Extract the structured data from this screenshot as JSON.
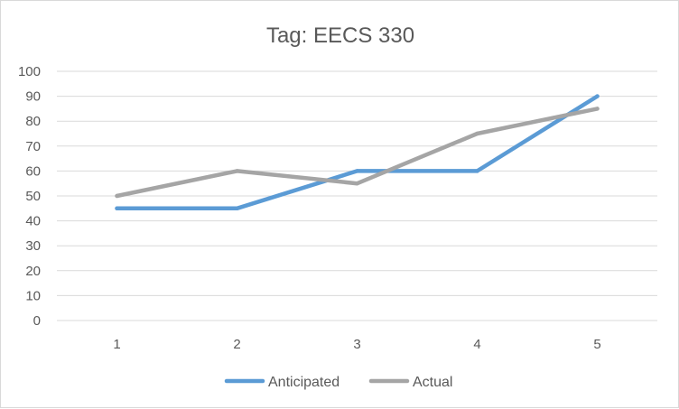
{
  "chart_data": {
    "type": "line",
    "title": "Tag: EECS 330",
    "xlabel": "",
    "ylabel": "",
    "categories": [
      "1",
      "2",
      "3",
      "4",
      "5"
    ],
    "ylim": [
      0,
      100
    ],
    "yticks": [
      "0",
      "10",
      "20",
      "30",
      "40",
      "50",
      "60",
      "70",
      "80",
      "90",
      "100"
    ],
    "grid": true,
    "legend_position": "bottom",
    "series": [
      {
        "name": "Anticipated",
        "color": "#5b9bd5",
        "values": [
          45,
          45,
          60,
          60,
          90
        ]
      },
      {
        "name": "Actual",
        "color": "#a5a5a5",
        "values": [
          50,
          60,
          55,
          75,
          85
        ]
      }
    ]
  }
}
